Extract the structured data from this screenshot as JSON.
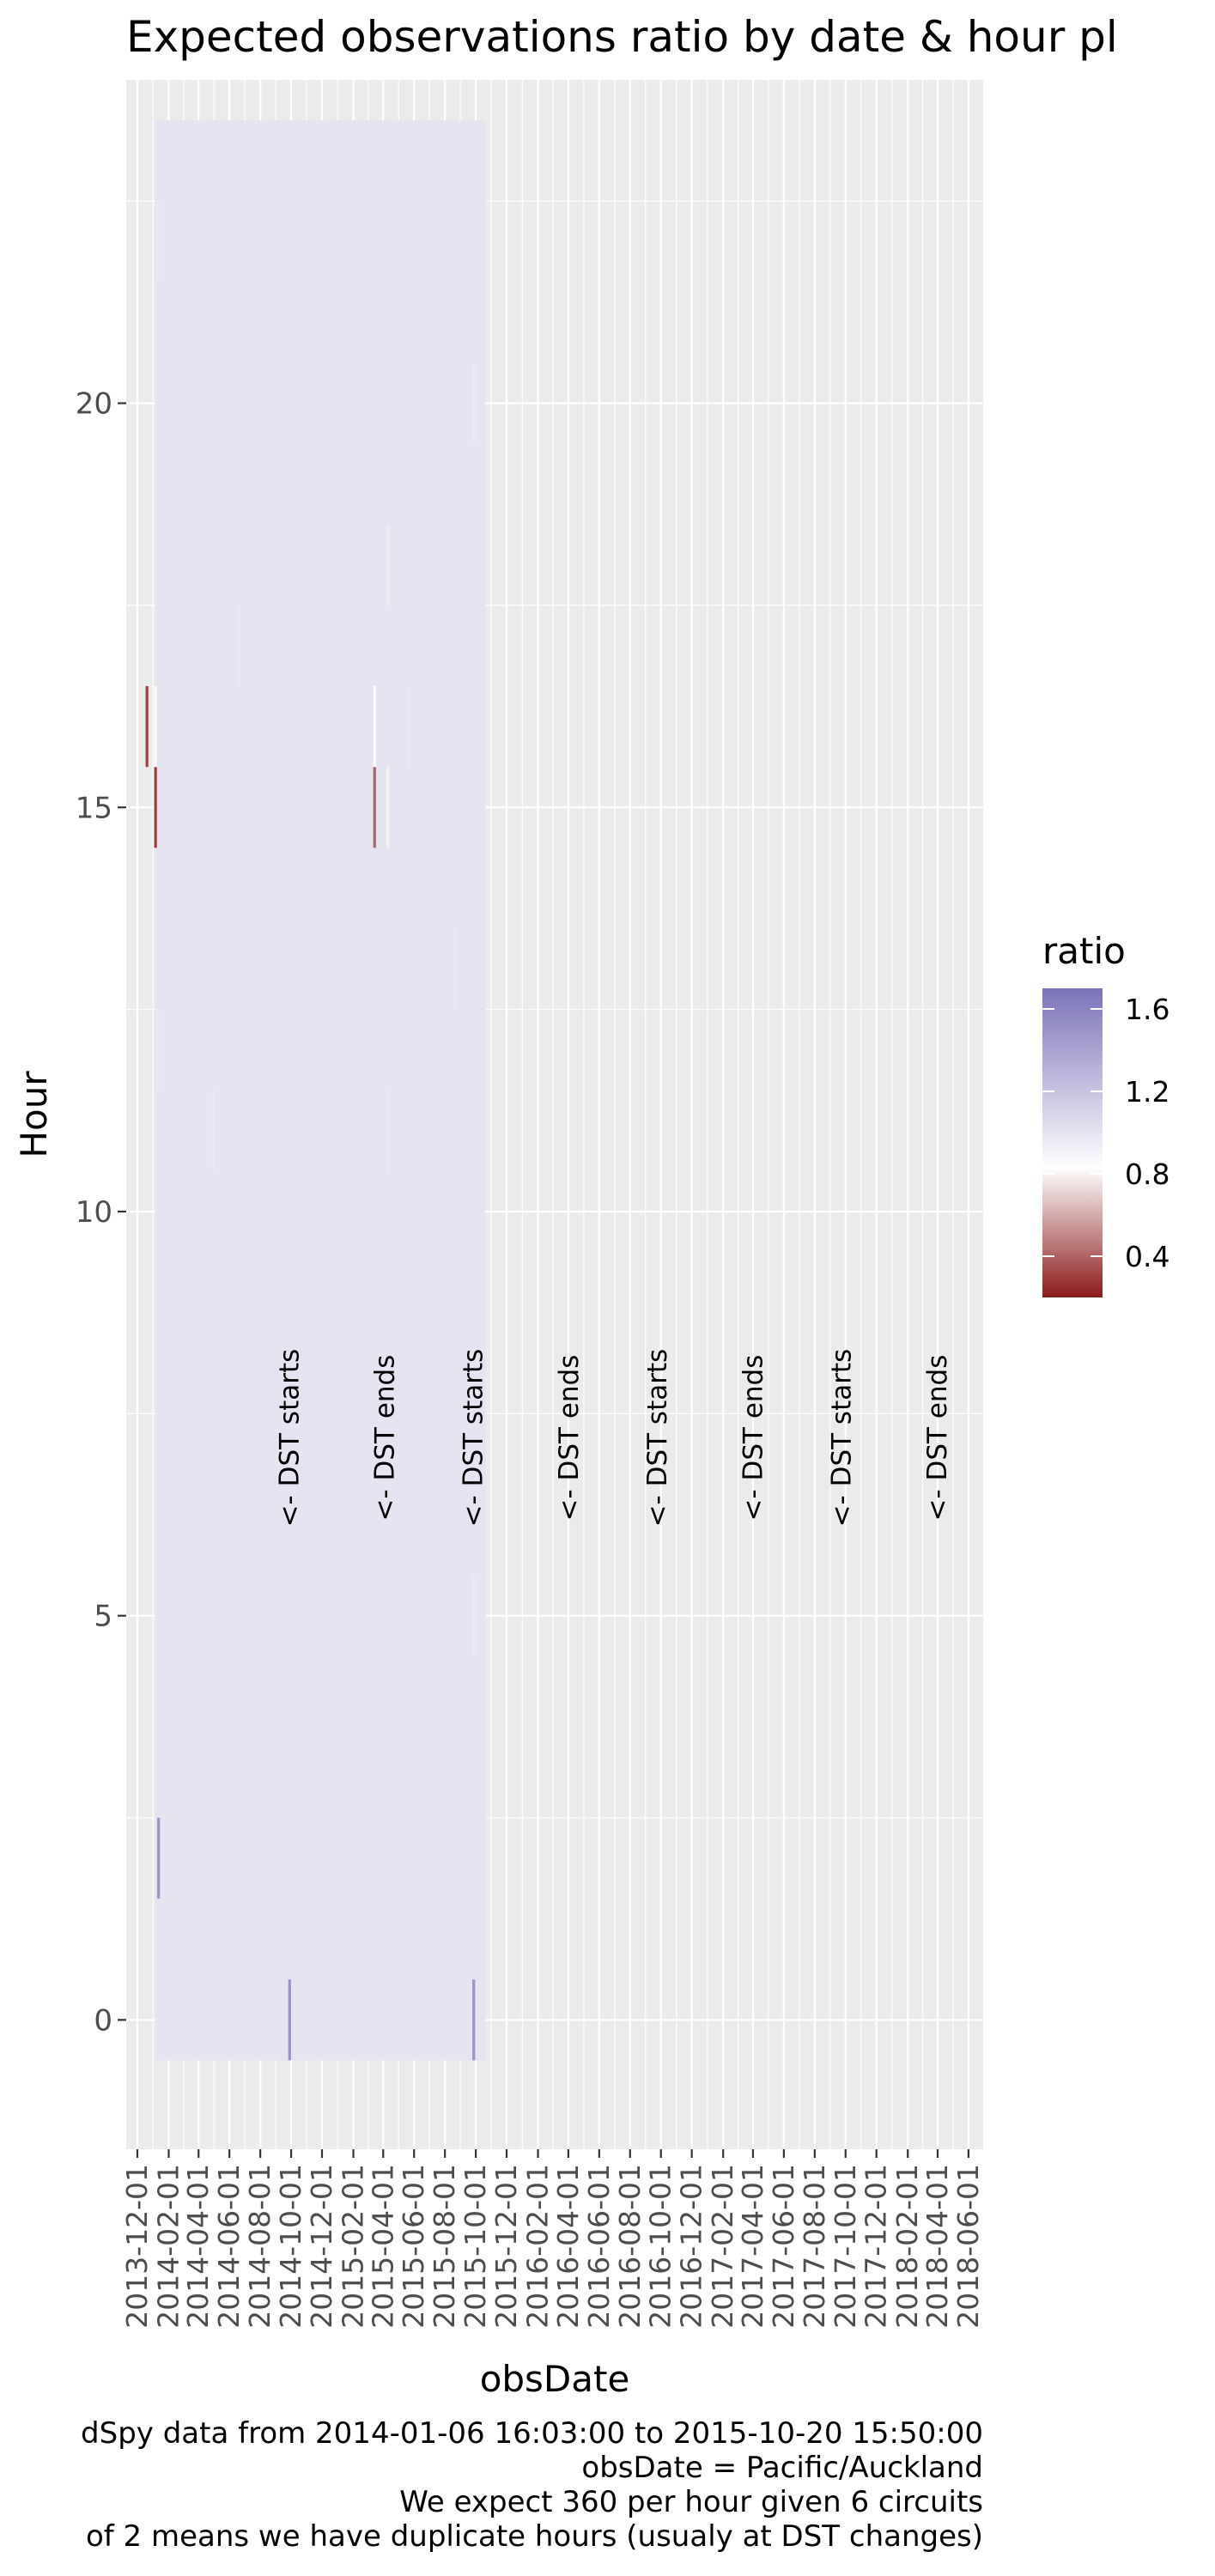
{
  "chart_data": {
    "type": "heatmap",
    "title": "Expected observations ratio by date & hour pl",
    "xlabel": "obsDate",
    "ylabel": "Hour",
    "xlim": [
      "2013-11-09",
      "2018-06-30"
    ],
    "ylim": [
      -1.6,
      24.0
    ],
    "x_ticks": [
      "2013-12-01",
      "2014-02-01",
      "2014-04-01",
      "2014-06-01",
      "2014-08-01",
      "2014-10-01",
      "2014-12-01",
      "2015-02-01",
      "2015-04-01",
      "2015-06-01",
      "2015-08-01",
      "2015-10-01",
      "2015-12-01",
      "2016-02-01",
      "2016-04-01",
      "2016-06-01",
      "2016-08-01",
      "2016-10-01",
      "2016-12-01",
      "2017-02-01",
      "2017-04-01",
      "2017-06-01",
      "2017-08-01",
      "2017-10-01",
      "2017-12-01",
      "2018-02-01",
      "2018-04-01",
      "2018-06-01"
    ],
    "y_ticks": [
      0,
      5,
      10,
      15,
      20
    ],
    "grid": true,
    "tile_range": {
      "x": [
        "2014-01-06",
        "2015-10-20"
      ],
      "y": [
        0,
        23
      ]
    },
    "base_ratio": 1.0,
    "ratio_cells": [
      {
        "date": "2013-12-20",
        "hour": 16,
        "ratio": 0.3
      },
      {
        "date": "2014-01-06",
        "hour": 15,
        "ratio": 0.3
      },
      {
        "date": "2014-01-06",
        "hour": 16,
        "ratio": 0.85
      },
      {
        "date": "2014-01-10",
        "hour": 22,
        "ratio": 0.97
      },
      {
        "date": "2014-01-10",
        "hour": 12,
        "ratio": 0.97
      },
      {
        "date": "2014-01-12",
        "hour": 2,
        "ratio": 1.5
      },
      {
        "date": "2014-05-01",
        "hour": 11,
        "ratio": 0.97
      },
      {
        "date": "2014-06-20",
        "hour": 17,
        "ratio": 0.97
      },
      {
        "date": "2014-09-28",
        "hour": 0,
        "ratio": 1.5
      },
      {
        "date": "2015-03-15",
        "hour": 15,
        "ratio": 0.4
      },
      {
        "date": "2015-03-15",
        "hour": 16,
        "ratio": 0.85
      },
      {
        "date": "2015-04-10",
        "hour": 15,
        "ratio": 0.8
      },
      {
        "date": "2015-04-10",
        "hour": 18,
        "ratio": 0.95
      },
      {
        "date": "2015-04-10",
        "hour": 11,
        "ratio": 0.97
      },
      {
        "date": "2015-05-20",
        "hour": 16,
        "ratio": 0.97
      },
      {
        "date": "2015-08-20",
        "hour": 13,
        "ratio": 0.97
      },
      {
        "date": "2015-09-27",
        "hour": 0,
        "ratio": 1.5
      },
      {
        "date": "2015-09-27",
        "hour": 5,
        "ratio": 0.97
      },
      {
        "date": "2015-09-27",
        "hour": 20,
        "ratio": 0.97
      }
    ],
    "dst_annotations": [
      {
        "date": "2014-09-28",
        "label": "<- DST starts"
      },
      {
        "date": "2015-04-05",
        "label": "<- DST ends"
      },
      {
        "date": "2015-09-27",
        "label": "<- DST starts"
      },
      {
        "date": "2016-04-03",
        "label": "<- DST ends"
      },
      {
        "date": "2016-09-25",
        "label": "<- DST starts"
      },
      {
        "date": "2017-04-02",
        "label": "<- DST ends"
      },
      {
        "date": "2017-09-24",
        "label": "<- DST starts"
      },
      {
        "date": "2018-04-01",
        "label": "<- DST ends"
      }
    ],
    "annotation_hour": 7.2,
    "legend": {
      "title": "ratio",
      "placement": "right",
      "ticks": [
        1.6,
        1.2,
        0.8,
        0.4
      ],
      "range": [
        0.2,
        1.7
      ],
      "colors": {
        "low": "#8B1A1A",
        "mid": "#FFFFFF",
        "high": "#7B73B8"
      }
    },
    "caption": [
      "dSpy data from 2014-01-06 16:03:00 to 2015-10-20 15:50:00",
      "obsDate = Pacific/Auckland",
      "We expect 360 per hour given 6 circuits",
      "of 2 means we have duplicate hours (usualy at DST changes)"
    ]
  }
}
